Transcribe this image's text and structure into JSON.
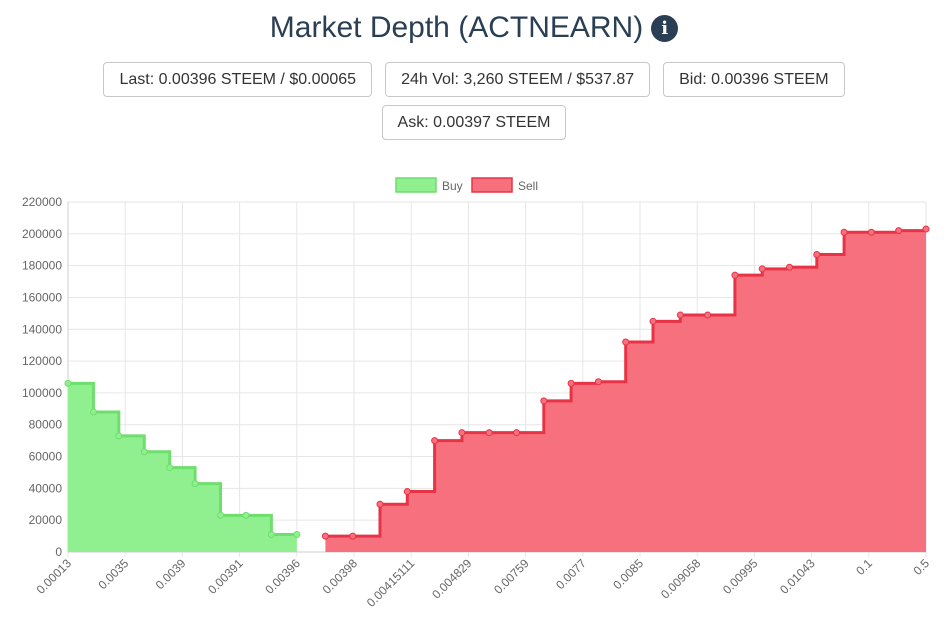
{
  "header": {
    "title": "Market Depth (ACTNEARN)",
    "info_icon": "info-circle-icon"
  },
  "stats": [
    {
      "name": "stat-last",
      "text": "Last: 0.00396 STEEM / $0.00065"
    },
    {
      "name": "stat-volume",
      "text": "24h Vol: 3,260 STEEM / $537.87"
    },
    {
      "name": "stat-bid",
      "text": "Bid: 0.00396 STEEM"
    },
    {
      "name": "stat-ask",
      "text": "Ask: 0.00397 STEEM"
    }
  ],
  "colors": {
    "buy_fill": "#90f08f",
    "buy_line": "#6ede6d",
    "sell_fill": "#f7707d",
    "sell_line": "#e83347",
    "grid": "#e6e6e6",
    "text": "#666666"
  },
  "chart_data": {
    "type": "area",
    "step": true,
    "legend_position": "top",
    "grid": true,
    "ylim": [
      0,
      220000
    ],
    "y_ticks": [
      "0",
      "20000",
      "40000",
      "60000",
      "80000",
      "100000",
      "120000",
      "140000",
      "160000",
      "180000",
      "200000",
      "220000"
    ],
    "x_tick_labels": [
      "0.00013",
      "0.0035",
      "0.0039",
      "0.00391",
      "0.00396",
      "0.00398",
      "0.00415111",
      "0.004829",
      "0.00759",
      "0.0077",
      "0.0085",
      "0.009058",
      "0.00995",
      "0.01043",
      "0.1",
      "0.5"
    ],
    "series": [
      {
        "name": "Buy",
        "values": [
          106000,
          88000,
          73000,
          63000,
          53000,
          43000,
          23000,
          23000,
          11000,
          11000
        ]
      },
      {
        "name": "Sell",
        "values": [
          10000,
          10000,
          30000,
          38000,
          70000,
          75000,
          75000,
          75000,
          95000,
          106000,
          107000,
          132000,
          145000,
          149000,
          149000,
          174000,
          178000,
          179000,
          187000,
          201000,
          201000,
          202000,
          203000
        ]
      }
    ]
  }
}
